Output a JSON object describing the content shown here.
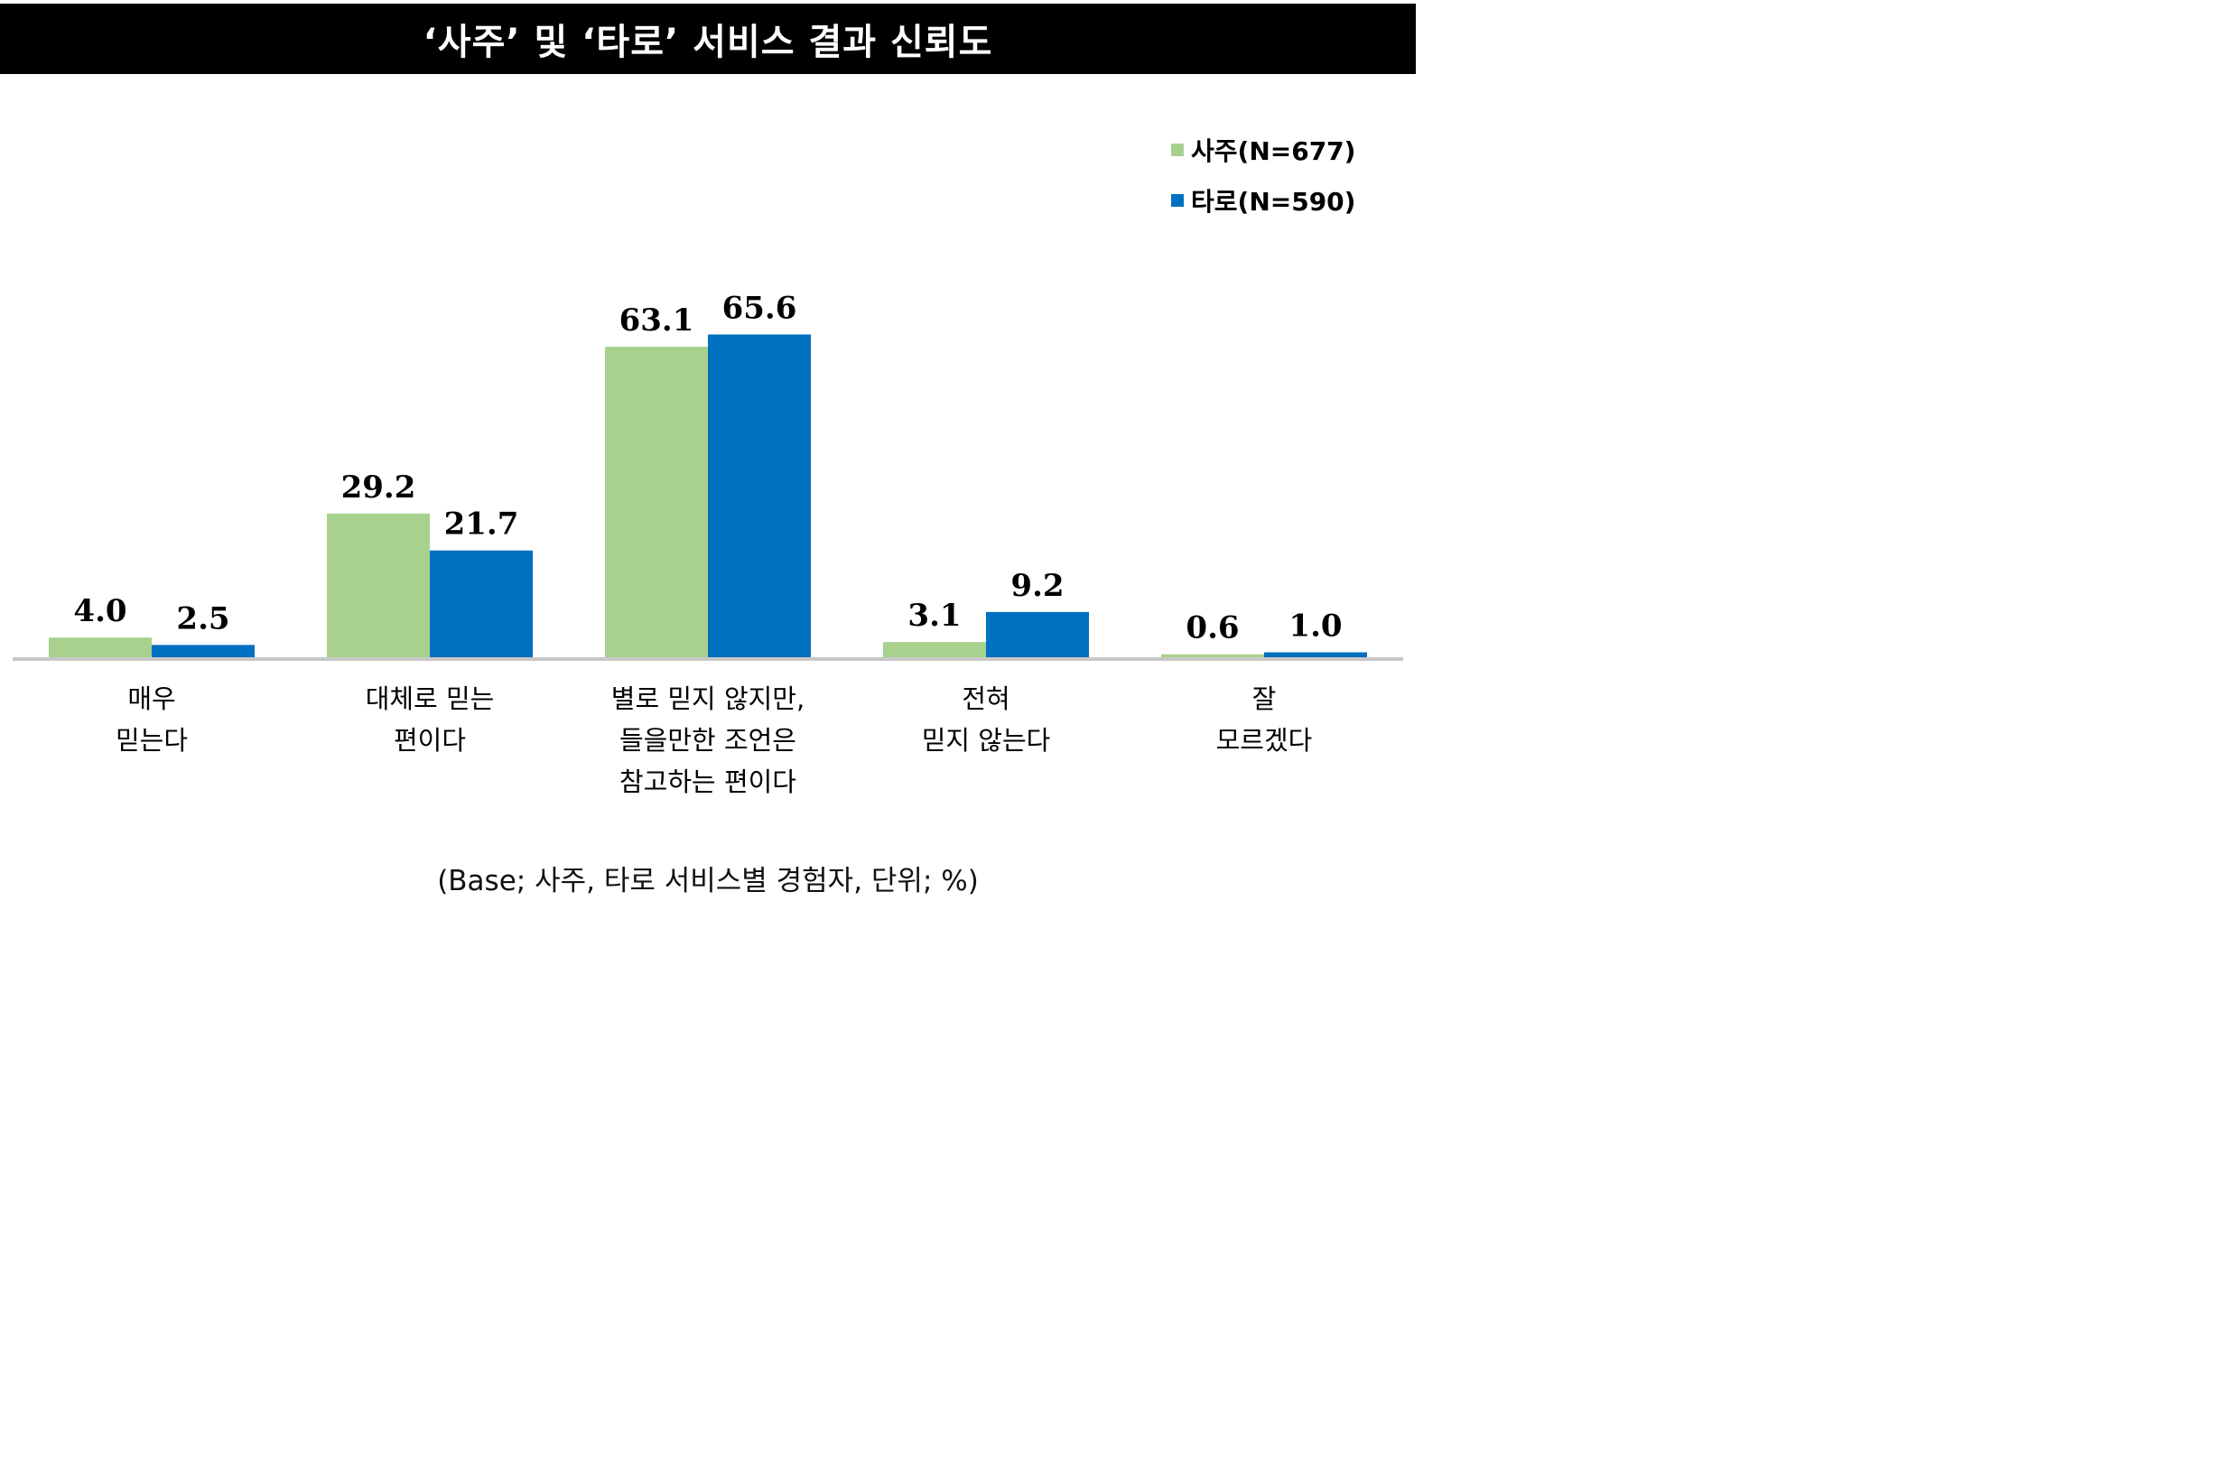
{
  "title": "‘사주’ 및 ‘타로’ 서비스 결과 신뢰도",
  "footnote": "(Base; 사주, 타로 서비스별 경험자, 단위; %)",
  "colors": {
    "saju": "#A9D18E",
    "taro": "#0070C0",
    "baseline": "#C8C8C8"
  },
  "chart_data": {
    "type": "bar",
    "categories": [
      [
        "매우",
        "믿는다"
      ],
      [
        "대체로 믿는",
        "편이다"
      ],
      [
        "별로 믿지 않지만,",
        "들을만한 조언은",
        "참고하는 편이다"
      ],
      [
        "전혀",
        "믿지 않는다"
      ],
      [
        "잘",
        "모르겠다"
      ]
    ],
    "series": [
      {
        "name": "사주(N=677)",
        "values": [
          4.0,
          29.2,
          63.1,
          3.1,
          0.6
        ],
        "labels": [
          "4.0",
          "29.2",
          "63.1",
          "3.1",
          "0.6"
        ]
      },
      {
        "name": "타로(N=590)",
        "values": [
          2.5,
          21.7,
          65.6,
          9.2,
          1.0
        ],
        "labels": [
          "2.5",
          "21.7",
          "65.6",
          "9.2",
          "1.0"
        ]
      }
    ],
    "legend_position": "top-right",
    "grid": false
  }
}
